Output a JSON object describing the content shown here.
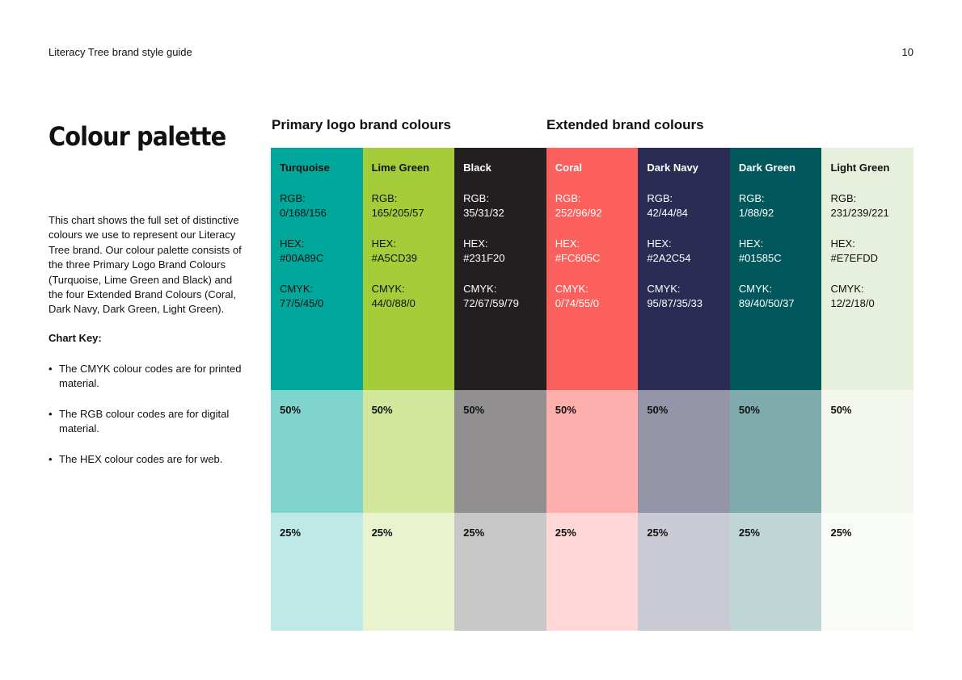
{
  "header": {
    "doc_title": "Literacy Tree brand style guide",
    "page_number": "10"
  },
  "sidebar": {
    "heading": "Colour palette",
    "intro": "This chart shows the full set of distinctive colours we use to represent our Literacy Tree brand. Our colour palette consists of the three Primary Logo Brand Colours (Turquoise, Lime Green and Black) and the four Extended Brand Colours (Coral, Dark Navy, Dark Green, Light Green).",
    "key_title": "Chart Key:",
    "key_items": [
      "The CMYK colour codes are for printed material.",
      "The RGB colour codes are for digital material.",
      "The HEX colour codes are for web."
    ]
  },
  "palette": {
    "primary_title": "Primary logo brand colours",
    "extended_title": "Extended brand colours",
    "labels": {
      "rgb": "RGB:",
      "hex": "HEX:",
      "cmyk": "CMYK:",
      "tint50": "50%",
      "tint25": "25%"
    },
    "colours": [
      {
        "name": "Turquoise",
        "rgb": "0/168/156",
        "hex": "#00A89C",
        "cmyk": "77/5/45/0",
        "color": "#00A89C",
        "tint50": "#80D4CE",
        "tint25": "#BFE9E6",
        "text_color": "#111111"
      },
      {
        "name": "Lime Green",
        "rgb": "165/205/57",
        "hex": "#A5CD39",
        "cmyk": "44/0/88/0",
        "color": "#A5CD39",
        "tint50": "#D2E69C",
        "tint25": "#E9F3CE",
        "text_color": "#111111"
      },
      {
        "name": "Black",
        "rgb": "35/31/32",
        "hex": "#231F20",
        "cmyk": "72/67/59/79",
        "color": "#231F20",
        "tint50": "#918F8F",
        "tint25": "#C8C7C7",
        "text_color": "#ffffff"
      },
      {
        "name": "Coral",
        "rgb": "252/96/92",
        "hex": "#FC605C",
        "cmyk": "0/74/55/0",
        "color": "#FC605C",
        "tint50": "#FEAFAD",
        "tint25": "#FED7D6",
        "text_color": "#ffffff"
      },
      {
        "name": "Dark Navy",
        "rgb": "42/44/84",
        "hex": "#2A2C54",
        "cmyk": "95/87/35/33",
        "color": "#2A2C54",
        "tint50": "#9495A9",
        "tint25": "#CACAD4",
        "text_color": "#ffffff"
      },
      {
        "name": "Dark Green",
        "rgb": "1/88/92",
        "hex": "#01585C",
        "cmyk": "89/40/50/37",
        "color": "#01585C",
        "tint50": "#80ABAD",
        "tint25": "#C0D5D6",
        "text_color": "#ffffff"
      },
      {
        "name": "Light Green",
        "rgb": "231/239/221",
        "hex": "#E7EFDD",
        "cmyk": "12/2/18/0",
        "color": "#E7EFDD",
        "tint50": "#F3F7EE",
        "tint25": "#F9FBF6",
        "text_color": "#111111"
      }
    ]
  }
}
